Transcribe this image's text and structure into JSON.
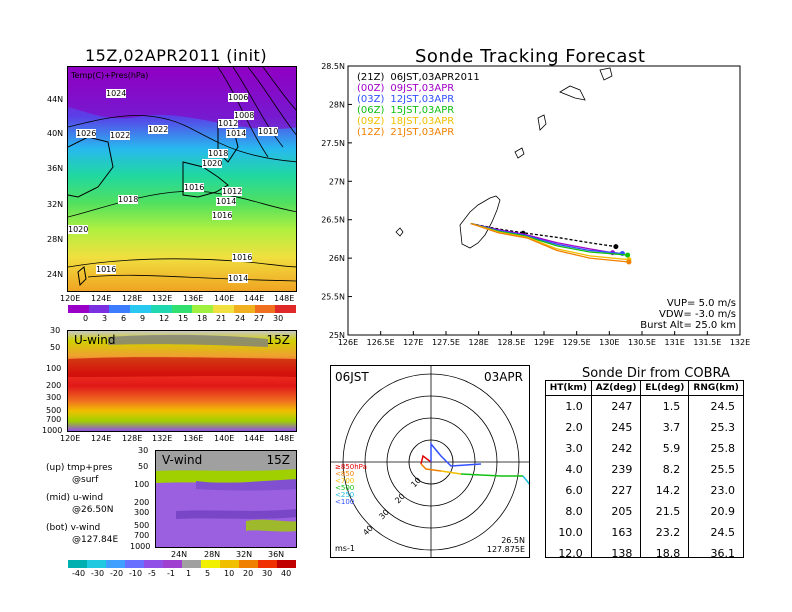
{
  "left": {
    "title": "15Z,02APR2011 (init)",
    "map_label": "Temp(C)+Pres(hPa)",
    "lat_ticks": [
      "44N",
      "40N",
      "36N",
      "32N",
      "28N",
      "24N"
    ],
    "lon_ticks": [
      "120E",
      "124E",
      "128E",
      "132E",
      "136E",
      "140E",
      "144E",
      "148E"
    ],
    "pressure_labels": [
      "1024",
      "1006",
      "1008",
      "1012",
      "1014",
      "1010",
      "1026",
      "1022",
      "1022",
      "1018",
      "1020",
      "1016",
      "1012",
      "1018",
      "1014",
      "1016",
      "1020",
      "1016",
      "1016",
      "1014"
    ],
    "temp_colorbar": {
      "ticks": [
        "0",
        "3",
        "6",
        "9",
        "12",
        "15",
        "18",
        "21",
        "24",
        "27",
        "30"
      ],
      "colors": [
        "#9a00c8",
        "#7a30e0",
        "#3c7cff",
        "#28c8f0",
        "#20d8b0",
        "#30e070",
        "#a0f040",
        "#f0e040",
        "#f0b020",
        "#f07020",
        "#e02828"
      ]
    },
    "uwind": {
      "label": "U-wind",
      "time": "15Z",
      "y_ticks": [
        "30",
        "50",
        "100",
        "200",
        "300",
        "500",
        "700",
        "1000"
      ],
      "x_ticks": [
        "120E",
        "124E",
        "128E",
        "132E",
        "136E",
        "140E",
        "144E",
        "148E"
      ]
    },
    "vwind": {
      "label": "V-wind",
      "time": "15Z",
      "y_ticks": [
        "30",
        "50",
        "100",
        "200",
        "300",
        "500",
        "700",
        "1000"
      ],
      "x_ticks": [
        "24N",
        "28N",
        "32N",
        "36N"
      ]
    },
    "notes": [
      {
        "head": "(up) tmp+pres",
        "sub": "@surf"
      },
      {
        "head": "(mid) u-wind",
        "sub": "@26.50N"
      },
      {
        "head": "(bot) v-wind",
        "sub": "@127.84E"
      }
    ],
    "wind_colorbar": {
      "ticks": [
        "-40",
        "-30",
        "-20",
        "-10",
        "-5",
        "-1",
        "1",
        "5",
        "10",
        "20",
        "30",
        "40"
      ],
      "colors": [
        "#00b0b0",
        "#20c8e0",
        "#40a0ff",
        "#6870ff",
        "#9050e8",
        "#a040d0",
        "#a0a0a0",
        "#f0f000",
        "#f0c000",
        "#f08000",
        "#f03000",
        "#c00000"
      ]
    }
  },
  "track": {
    "title": "Sonde Tracking Forecast",
    "legend": [
      {
        "tag": "(21Z)",
        "text": "06JST,03APR2011",
        "color": "#000000"
      },
      {
        "tag": "(00Z)",
        "text": "09JST,03APR",
        "color": "#a000c8"
      },
      {
        "tag": "(03Z)",
        "text": "12JST,03APR",
        "color": "#3050ff"
      },
      {
        "tag": "(06Z)",
        "text": "15JST,03APR",
        "color": "#10c010"
      },
      {
        "tag": "(09Z)",
        "text": "18JST,03APR",
        "color": "#f0c000"
      },
      {
        "tag": "(12Z)",
        "text": "21JST,03APR",
        "color": "#f08000"
      }
    ],
    "info": [
      "VUP= 5.0 m/s",
      "VDW= -3.0 m/s",
      "Burst Alt= 25.0 km"
    ]
  },
  "polar": {
    "left_label": "06JST",
    "right_label": "03APR",
    "unit": "ms-1",
    "location": [
      "26.5N",
      "127.875E"
    ],
    "ring_labels": [
      "10",
      "20",
      "30",
      "40"
    ],
    "legend": [
      {
        "text": "≥850hPa",
        "color": "#e00000"
      },
      {
        "text": "<850",
        "color": "#f08000"
      },
      {
        "text": "<700",
        "color": "#f0c000"
      },
      {
        "text": "<500",
        "color": "#10c010"
      },
      {
        "text": "<250",
        "color": "#20c0e0"
      },
      {
        "text": "<100",
        "color": "#3050ff"
      }
    ]
  },
  "table": {
    "title": "Sonde Dir from COBRA",
    "headers": [
      "HT(km)",
      "AZ(deg)",
      "EL(deg)",
      "RNG(km)"
    ],
    "rows": [
      [
        "1.0",
        "247",
        "1.5",
        "24.5"
      ],
      [
        "2.0",
        "245",
        "3.7",
        "25.3"
      ],
      [
        "3.0",
        "242",
        "5.9",
        "25.8"
      ],
      [
        "4.0",
        "239",
        "8.2",
        "25.5"
      ],
      [
        "6.0",
        "227",
        "14.2",
        "23.0"
      ],
      [
        "8.0",
        "205",
        "21.5",
        "20.9"
      ],
      [
        "10.0",
        "163",
        "23.2",
        "24.5"
      ],
      [
        "12.0",
        "138",
        "18.8",
        "36.1"
      ]
    ]
  },
  "chart_data": {
    "type": "line",
    "title": "Sonde Tracking Forecast",
    "x_ticks": [
      "126E",
      "126.5E",
      "127E",
      "127.5E",
      "128E",
      "128.5E",
      "129E",
      "129.5E",
      "130E",
      "130.5E",
      "131E",
      "131.5E",
      "132E"
    ],
    "y_ticks": [
      "25N",
      "25.5N",
      "26N",
      "26.5N",
      "27N",
      "27.5N",
      "28N",
      "28.5N"
    ],
    "xlim": [
      126,
      132
    ],
    "ylim": [
      25,
      28.5
    ],
    "series": [
      {
        "name": "(21Z) 06JST,03APR2011",
        "color": "#000000",
        "points": [
          [
            127.88,
            26.45
          ],
          [
            128.3,
            26.38
          ],
          [
            128.68,
            26.33
          ],
          [
            129.2,
            26.27
          ],
          [
            129.7,
            26.2
          ],
          [
            130.1,
            26.15
          ]
        ]
      },
      {
        "name": "(00Z) 09JST,03APR",
        "color": "#a000c8",
        "points": [
          [
            127.88,
            26.45
          ],
          [
            128.3,
            26.37
          ],
          [
            128.7,
            26.31
          ],
          [
            129.2,
            26.2
          ],
          [
            129.7,
            26.12
          ],
          [
            130.05,
            26.07
          ]
        ]
      },
      {
        "name": "(03Z) 12JST,03APR",
        "color": "#3050ff",
        "points": [
          [
            127.88,
            26.45
          ],
          [
            128.3,
            26.36
          ],
          [
            128.7,
            26.3
          ],
          [
            129.2,
            26.18
          ],
          [
            129.7,
            26.1
          ],
          [
            130.2,
            26.06
          ]
        ]
      },
      {
        "name": "(06Z) 15JST,03APR",
        "color": "#10c010",
        "points": [
          [
            127.88,
            26.45
          ],
          [
            128.3,
            26.35
          ],
          [
            128.7,
            26.29
          ],
          [
            129.2,
            26.16
          ],
          [
            129.7,
            26.08
          ],
          [
            130.28,
            26.04
          ]
        ]
      },
      {
        "name": "(09Z) 18JST,03APR",
        "color": "#f0c000",
        "points": [
          [
            127.88,
            26.45
          ],
          [
            128.3,
            26.34
          ],
          [
            128.75,
            26.27
          ],
          [
            129.2,
            26.12
          ],
          [
            129.7,
            26.03
          ],
          [
            130.3,
            25.98
          ]
        ]
      },
      {
        "name": "(12Z) 21JST,03APR",
        "color": "#f08000",
        "points": [
          [
            127.88,
            26.45
          ],
          [
            128.3,
            26.33
          ],
          [
            128.75,
            26.26
          ],
          [
            129.2,
            26.1
          ],
          [
            129.7,
            26.0
          ],
          [
            130.3,
            25.95
          ]
        ]
      }
    ]
  }
}
